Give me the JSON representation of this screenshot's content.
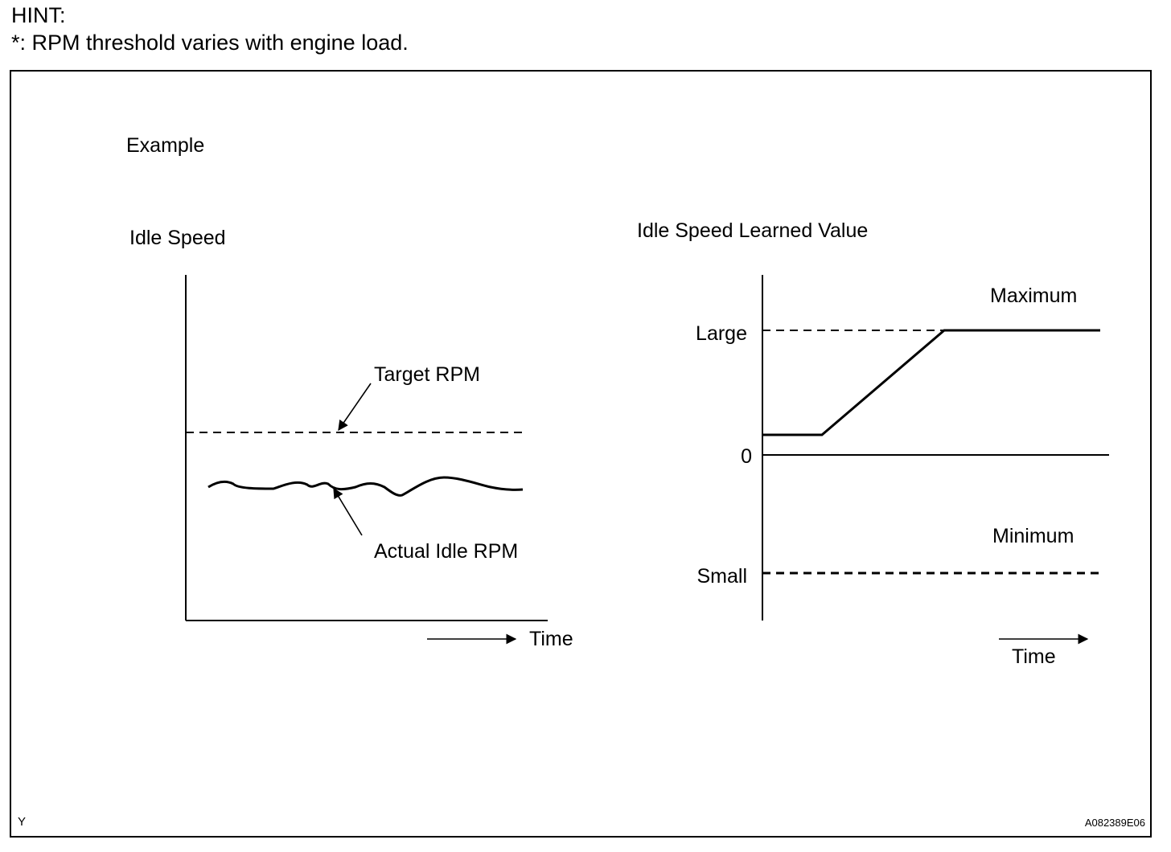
{
  "hint": {
    "title": "HINT:",
    "note": "*: RPM threshold varies with engine load."
  },
  "figure": {
    "example_label": "Example",
    "left_chart": {
      "title": "Idle Speed",
      "target_label": "Target RPM",
      "actual_label": "Actual Idle RPM",
      "time_label": "Time"
    },
    "right_chart": {
      "title": "Idle Speed Learned Value",
      "max_label": "Maximum",
      "min_label": "Minimum",
      "large_label": "Large",
      "zero_label": "0",
      "small_label": "Small",
      "time_label": "Time"
    },
    "corner_left": "Y",
    "figure_code": "A082389E06"
  }
}
